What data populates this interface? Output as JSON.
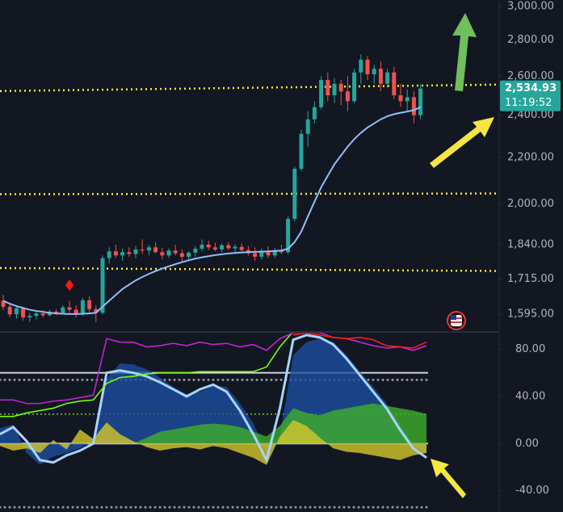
{
  "chart_data": [
    {
      "type": "candlestick",
      "up_color": "#26a69a",
      "down_color": "#ef5350",
      "open": [
        1640,
        1620,
        1595,
        1615,
        1585,
        1590,
        1598,
        1592,
        1604,
        1600,
        1618,
        1610,
        1596,
        1642,
        1612,
        1600,
        1790,
        1815,
        1800,
        1812,
        1805,
        1822,
        1818,
        1830,
        1812,
        1800,
        1818,
        1808,
        1795,
        1810,
        1825,
        1840,
        1830,
        1822,
        1838,
        1826,
        1832,
        1820,
        1808,
        1795,
        1815,
        1800,
        1820,
        1812,
        1940,
        2150,
        2310,
        2380,
        2440,
        2580,
        2500,
        2560,
        2520,
        2470,
        2620,
        2690,
        2610,
        2640,
        2560,
        2620,
        2500,
        2470,
        2490,
        2400
      ],
      "high": [
        1660,
        1630,
        1625,
        1620,
        1600,
        1605,
        1608,
        1610,
        1612,
        1625,
        1640,
        1625,
        1650,
        1655,
        1625,
        1800,
        1830,
        1840,
        1825,
        1830,
        1835,
        1860,
        1840,
        1850,
        1828,
        1826,
        1840,
        1822,
        1815,
        1835,
        1860,
        1855,
        1848,
        1845,
        1850,
        1842,
        1845,
        1835,
        1830,
        1825,
        1835,
        1828,
        1840,
        1950,
        2160,
        2330,
        2420,
        2470,
        2600,
        2620,
        2590,
        2580,
        2600,
        2640,
        2720,
        2710,
        2660,
        2680,
        2640,
        2650,
        2560,
        2530,
        2520,
        2560
      ],
      "low": [
        1610,
        1585,
        1580,
        1575,
        1570,
        1578,
        1585,
        1588,
        1592,
        1595,
        1600,
        1585,
        1590,
        1600,
        1570,
        1595,
        1770,
        1790,
        1780,
        1795,
        1790,
        1805,
        1800,
        1808,
        1785,
        1790,
        1800,
        1775,
        1785,
        1795,
        1815,
        1820,
        1815,
        1812,
        1820,
        1810,
        1815,
        1800,
        1780,
        1785,
        1790,
        1790,
        1805,
        1805,
        1930,
        2140,
        2250,
        2360,
        2430,
        2470,
        2460,
        2450,
        2420,
        2460,
        2560,
        2580,
        2560,
        2520,
        2540,
        2480,
        2440,
        2420,
        2360,
        2380
      ],
      "close": [
        1620,
        1595,
        1615,
        1585,
        1590,
        1598,
        1592,
        1604,
        1600,
        1618,
        1610,
        1596,
        1642,
        1612,
        1600,
        1790,
        1815,
        1800,
        1812,
        1805,
        1822,
        1818,
        1830,
        1812,
        1800,
        1818,
        1808,
        1795,
        1810,
        1825,
        1840,
        1830,
        1822,
        1838,
        1826,
        1832,
        1820,
        1808,
        1795,
        1815,
        1800,
        1820,
        1812,
        1940,
        2150,
        2310,
        2380,
        2440,
        2580,
        2500,
        2560,
        2520,
        2470,
        2620,
        2690,
        2610,
        2640,
        2560,
        2620,
        2500,
        2470,
        2490,
        2400,
        2535
      ],
      "moving_average": {
        "color": "#90bff9",
        "values": [
          1640,
          1630,
          1622,
          1616,
          1610,
          1606,
          1603,
          1600,
          1598,
          1597,
          1596,
          1596,
          1597,
          1598,
          1600,
          1620,
          1640,
          1660,
          1680,
          1695,
          1710,
          1722,
          1733,
          1743,
          1752,
          1760,
          1768,
          1775,
          1782,
          1788,
          1793,
          1797,
          1801,
          1804,
          1807,
          1809,
          1811,
          1812,
          1813,
          1814,
          1815,
          1816,
          1818,
          1825,
          1850,
          1890,
          1950,
          2010,
          2070,
          2120,
          2170,
          2210,
          2250,
          2285,
          2315,
          2340,
          2360,
          2380,
          2395,
          2405,
          2412,
          2418,
          2425,
          2440
        ]
      },
      "trend_lines": [
        {
          "values": [
            2522,
            2560
          ],
          "color": "#ffeb3b"
        },
        {
          "values": [
            2041,
            2044
          ],
          "color": "#ffeb3b"
        },
        {
          "values": [
            1754,
            1742
          ],
          "color": "#ffeb3b"
        }
      ],
      "last_price": {
        "value": 2534.93,
        "label": "2,534.93"
      },
      "countdown": "11:19:52",
      "log_scale": true,
      "ylim": [
        1541,
        3040
      ],
      "yticks": [
        {
          "value": 3000,
          "label": "3,000.00"
        },
        {
          "value": 2800,
          "label": "2,800.00"
        },
        {
          "value": 2600,
          "label": "2,600.00"
        },
        {
          "value": 2400,
          "label": "2,400.00"
        },
        {
          "value": 2200,
          "label": "2,200.00"
        },
        {
          "value": 2000,
          "label": "2,000.00"
        },
        {
          "value": 1840,
          "label": "1,840.00"
        },
        {
          "value": 1715,
          "label": "1,715.00"
        },
        {
          "value": 1595,
          "label": "1,595.00"
        }
      ]
    },
    {
      "type": "line",
      "ylim": [
        -58,
        94
      ],
      "yticks": [
        {
          "value": 80,
          "label": "80.00"
        },
        {
          "value": 40,
          "label": "40.00"
        },
        {
          "value": 0,
          "label": "0.00"
        },
        {
          "value": -40,
          "label": "-40.00"
        }
      ],
      "levels": [
        {
          "value": 60,
          "color": "#d1d4dc",
          "style": "solid"
        },
        {
          "value": 54,
          "color": "#9598a1",
          "style": "dots"
        },
        {
          "value": 25,
          "color": "#76ff03",
          "style": "dotted"
        },
        {
          "value": 0,
          "color": "#d1d4dc",
          "style": "solid"
        },
        {
          "value": -54,
          "color": "#9598a1",
          "style": "dots"
        }
      ],
      "series": [
        {
          "color": "#1c4fa0",
          "area": true,
          "values": [
            13,
            16,
            -8,
            -18,
            -11,
            -8,
            -4,
            3,
            55,
            68,
            67,
            63,
            56,
            48,
            42,
            44,
            49,
            48,
            34,
            17,
            -8,
            6,
            75,
            86,
            89,
            86,
            75,
            61,
            48,
            34,
            17,
            -1,
            -8
          ]
        },
        {
          "color": "#3fae2a",
          "area": true,
          "values": [
            0,
            0,
            0,
            0,
            0,
            0,
            0,
            0,
            0,
            0,
            0,
            5,
            10,
            12,
            14,
            16,
            17,
            16,
            14,
            10,
            6,
            15,
            30,
            26,
            24,
            28,
            30,
            32,
            34,
            32,
            30,
            28,
            25
          ]
        },
        {
          "color": "#d4c82c",
          "area": true,
          "values": [
            -2,
            -6,
            -4,
            -8,
            3,
            -5,
            12,
            4,
            18,
            8,
            2,
            -3,
            -6,
            -4,
            -3,
            -5,
            -2,
            -4,
            -8,
            -12,
            -18,
            6,
            20,
            15,
            5,
            -4,
            -7,
            -8,
            -10,
            -12,
            -14,
            -10,
            -8
          ]
        },
        {
          "color": "#a8d4ff",
          "area": false,
          "values": [
            8,
            14,
            2,
            -14,
            -16,
            -10,
            -6,
            0,
            60,
            62,
            60,
            57,
            52,
            46,
            40,
            46,
            50,
            44,
            28,
            8,
            -14,
            30,
            88,
            92,
            90,
            84,
            72,
            58,
            44,
            30,
            12,
            -4,
            -12
          ]
        },
        {
          "color": "#76ff03",
          "area": false,
          "values": [
            23,
            23,
            26,
            28,
            30,
            34,
            36,
            37,
            51,
            56,
            57,
            59,
            60,
            60,
            60,
            61,
            61,
            61,
            61,
            61,
            65,
            82,
            95,
            null,
            null,
            null,
            null,
            null,
            null,
            null,
            null,
            null,
            null
          ]
        },
        {
          "color": "#c026d3",
          "area": false,
          "values": [
            37,
            37,
            34,
            34,
            36,
            37,
            39,
            41,
            89,
            86,
            86,
            82,
            83,
            85,
            83,
            86,
            84,
            85,
            82,
            84,
            79,
            89,
            94,
            95,
            94,
            90,
            89,
            86,
            83,
            81,
            82,
            79,
            83
          ]
        },
        {
          "color": "#ff1a1a",
          "area": false,
          "values": [
            null,
            null,
            null,
            null,
            null,
            null,
            null,
            null,
            null,
            null,
            null,
            null,
            null,
            null,
            null,
            null,
            null,
            null,
            null,
            null,
            null,
            null,
            92,
            94,
            92,
            90,
            89,
            90,
            88,
            83,
            82,
            81,
            86
          ]
        }
      ]
    }
  ]
}
